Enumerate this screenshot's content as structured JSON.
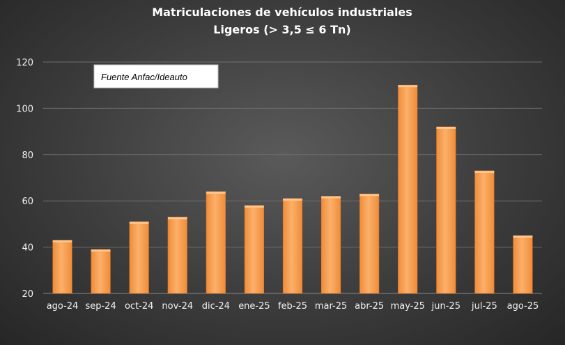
{
  "chart_data": {
    "type": "bar",
    "title": "Matriculaciones de vehículos industriales",
    "subtitle": "Ligeros (> 3,5 ≤ 6 Tn)",
    "annotation": "Fuente Anfac/Ideauto",
    "categories": [
      "ago-24",
      "sep-24",
      "oct-24",
      "nov-24",
      "dic-24",
      "ene-25",
      "feb-25",
      "mar-25",
      "abr-25",
      "may-25",
      "jun-25",
      "jul-25",
      "ago-25"
    ],
    "values": [
      43,
      39,
      51,
      53,
      64,
      58,
      61,
      62,
      63,
      110,
      92,
      73,
      45
    ],
    "ylim": [
      20,
      120
    ],
    "yticks": [
      20,
      40,
      60,
      80,
      100,
      120
    ],
    "grid": true,
    "legend": "none",
    "bar_color": "#F79646",
    "bar_top_color": "#FFC58A"
  }
}
